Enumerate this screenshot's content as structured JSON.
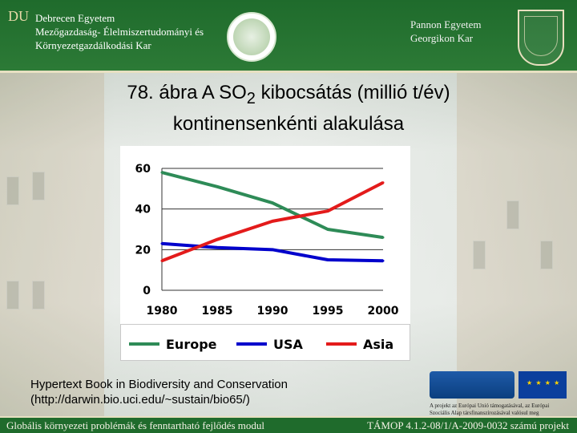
{
  "header": {
    "logo_letters": "DU",
    "university_left": [
      "Debrecen Egyetem",
      "Mezőgazdaság- Élelmiszertudományi és",
      "Környezetgazdálkodási Kar"
    ],
    "university_right": [
      "Pannon Egyetem",
      "Georgikon Kar"
    ]
  },
  "title": {
    "line1": "78. ábra A SO",
    "line1_sub": "2",
    "line1_end": " kibocsátás (millió t/év)",
    "line2": "kontinensenkénti alakulása"
  },
  "source": {
    "line1": "Hypertext Book in Biodiversity and Conservation",
    "line2": "(http://darwin.bio.uci.edu/~sustain/bio65/)"
  },
  "badges": {
    "uj_magyarorszag": "Új Magyarország",
    "eu_note": "A projekt az Európai Unió támogatásával, az Európai Szociális Alap társfinanszírozásával valósul meg"
  },
  "footer": {
    "left": "Globális környezeti problémák és fenntartható fejlődés modul",
    "right": "TÁMOP 4.1.2-08/1/A-2009-0032 számú projekt"
  },
  "chart_data": {
    "type": "line",
    "x": [
      1980,
      1985,
      1990,
      1995,
      2000
    ],
    "x_tick_labels": [
      "1980",
      "1985",
      "1990",
      "1995",
      "2000"
    ],
    "y_tick_labels": [
      "0",
      "20",
      "40",
      "60"
    ],
    "ylim": [
      0,
      60
    ],
    "xlim": [
      1980,
      2000
    ],
    "grid": true,
    "legend_position": "bottom",
    "series": [
      {
        "name": "Europe",
        "color": "#2e8b57",
        "values": [
          58,
          51,
          43,
          30,
          26
        ]
      },
      {
        "name": "USA",
        "color": "#0000cc",
        "values": [
          23,
          21,
          20,
          15,
          14.5
        ]
      },
      {
        "name": "Asia",
        "color": "#e31b1b",
        "values": [
          14.5,
          25,
          34,
          39,
          53
        ]
      }
    ]
  }
}
